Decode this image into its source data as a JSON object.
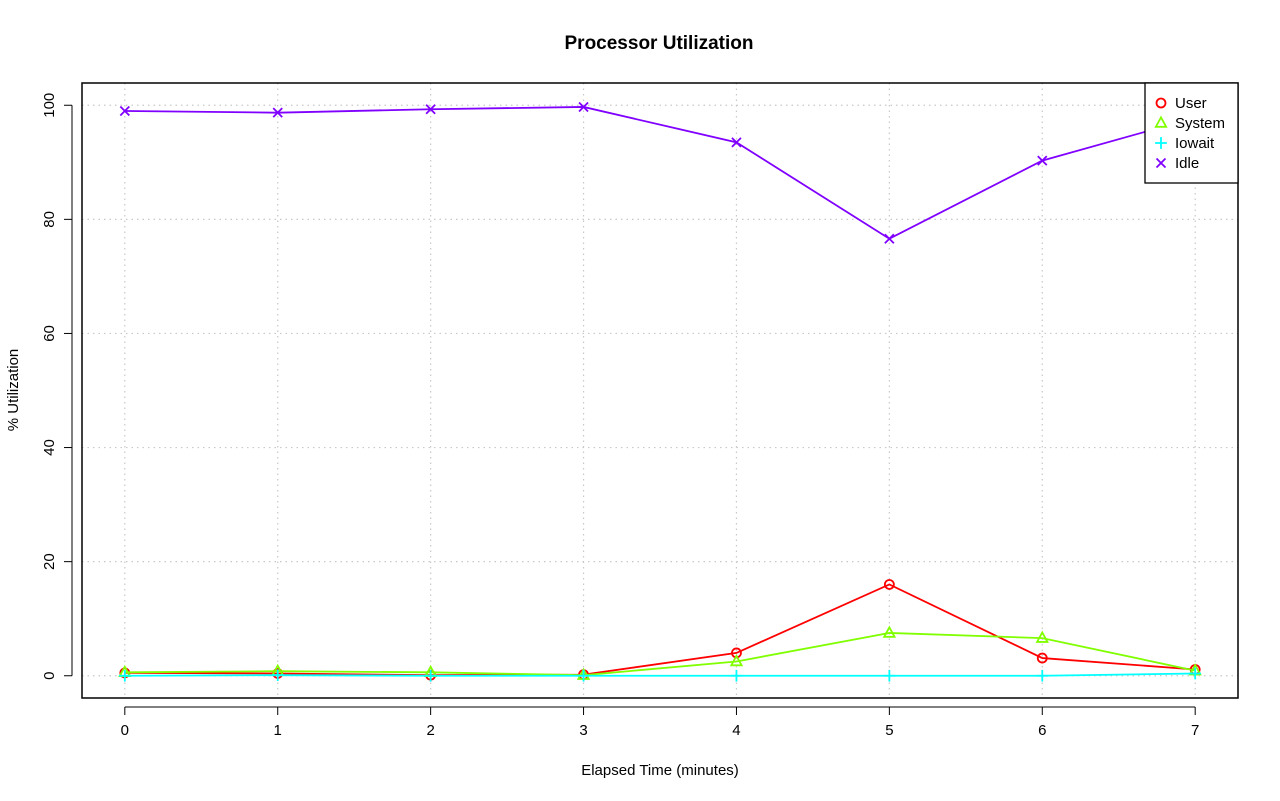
{
  "chart_data": {
    "type": "line",
    "title": "Processor Utilization",
    "xlabel": "Elapsed Time (minutes)",
    "ylabel": "% Utilization",
    "x": [
      0,
      1,
      2,
      3,
      4,
      5,
      6,
      7
    ],
    "xlim": [
      -0.28,
      7.28
    ],
    "ylim": [
      -3.9,
      103.9
    ],
    "xticks": [
      0,
      1,
      2,
      3,
      4,
      5,
      6,
      7
    ],
    "yticks": [
      0,
      20,
      40,
      60,
      80,
      100
    ],
    "grid": true,
    "legend_position": "top-right",
    "series": [
      {
        "name": "User",
        "color": "#ff0000",
        "marker": "circle",
        "values": [
          0.5,
          0.4,
          0.1,
          0.2,
          4.0,
          16.0,
          3.1,
          1.1
        ]
      },
      {
        "name": "System",
        "color": "#80ff00",
        "marker": "triangle",
        "values": [
          0.6,
          0.8,
          0.6,
          0.1,
          2.5,
          7.5,
          6.6,
          0.9
        ]
      },
      {
        "name": "Iowait",
        "color": "#00ffff",
        "marker": "plus",
        "values": [
          0.0,
          0.1,
          0.0,
          0.0,
          0.0,
          0.0,
          0.0,
          0.4
        ]
      },
      {
        "name": "Idle",
        "color": "#8000ff",
        "marker": "cross",
        "values": [
          99.0,
          98.7,
          99.3,
          99.7,
          93.5,
          76.6,
          90.3,
          97.8
        ]
      }
    ]
  }
}
